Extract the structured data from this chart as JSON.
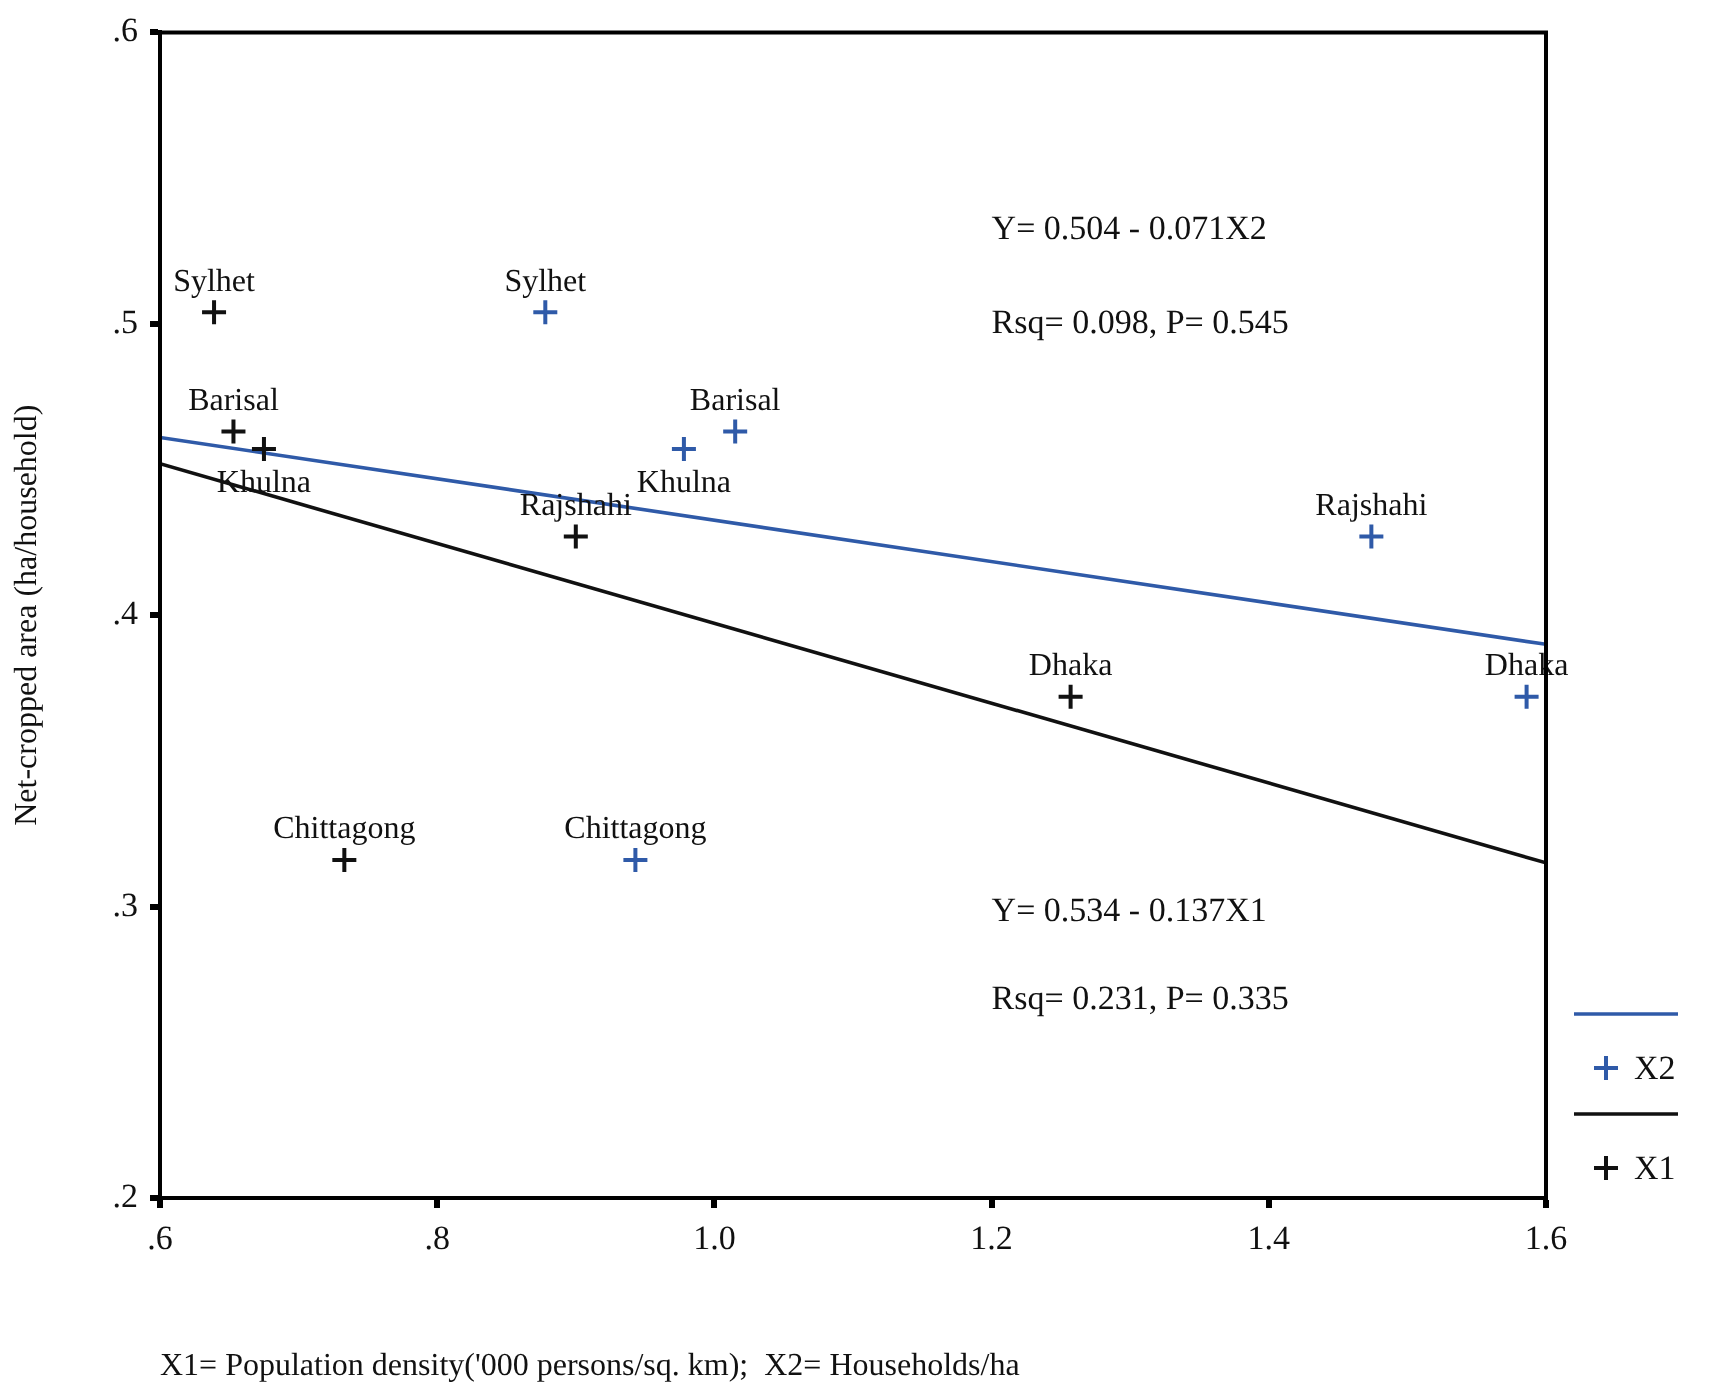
{
  "chart_data": {
    "type": "scatter",
    "xlabel": "X1= Population density('000 persons/sq. km);  X2= Households/ha",
    "ylabel": "Net-cropped area (ha/household)",
    "xlim": [
      0.6,
      1.6
    ],
    "ylim": [
      0.2,
      0.6
    ],
    "xticks": [
      {
        "value": 0.6,
        "label": ".6"
      },
      {
        "value": 0.8,
        "label": ".8"
      },
      {
        "value": 1.0,
        "label": "1.0"
      },
      1.2,
      1.4,
      1.6
    ],
    "yticks": [
      {
        "value": 0.2,
        "label": ".2"
      },
      {
        "value": 0.3,
        "label": ".3"
      },
      {
        "value": 0.4,
        "label": ".4"
      },
      {
        "value": 0.5,
        "label": ".5"
      },
      {
        "value": 0.6,
        "label": ".6"
      }
    ],
    "legend": "bottom right",
    "series": [
      {
        "name": "X2",
        "type": "scatter",
        "marker": "cross",
        "color": "#2f5aa8",
        "x": [
          0.878,
          1.015,
          0.978,
          1.474,
          1.586,
          0.943
        ],
        "values": [
          0.504,
          0.463,
          0.457,
          0.427,
          0.372,
          0.316
        ],
        "value_labels": [
          "Sylhet",
          "Barisal",
          "Khulna",
          "Rajshahi",
          "Dhaka",
          "Chittagong"
        ]
      },
      {
        "name": "X1",
        "type": "scatter",
        "marker": "cross",
        "color": "#111111",
        "x": [
          0.639,
          0.653,
          0.675,
          0.9,
          1.257,
          0.733
        ],
        "values": [
          0.504,
          0.463,
          0.457,
          0.427,
          0.372,
          0.316
        ],
        "value_labels": [
          "Sylhet",
          "Barisal",
          "Khulna",
          "Rajshahi",
          "Dhaka",
          "Chittagong"
        ]
      },
      {
        "type": "line",
        "marker": "none",
        "color": "#2f5aa8",
        "x": [
          0.6,
          1.6
        ],
        "values": [
          0.461,
          0.39
        ]
      },
      {
        "type": "line",
        "marker": "none",
        "color": "#111111",
        "x": [
          0.6,
          1.6
        ],
        "values": [
          0.452,
          0.315
        ]
      }
    ],
    "annotations": [
      "Y= 0.504 - 0.071X2",
      "Rsq= 0.098, P= 0.545",
      "Y= 0.534 - 0.137X1",
      "Rsq= 0.231, P= 0.335"
    ]
  }
}
